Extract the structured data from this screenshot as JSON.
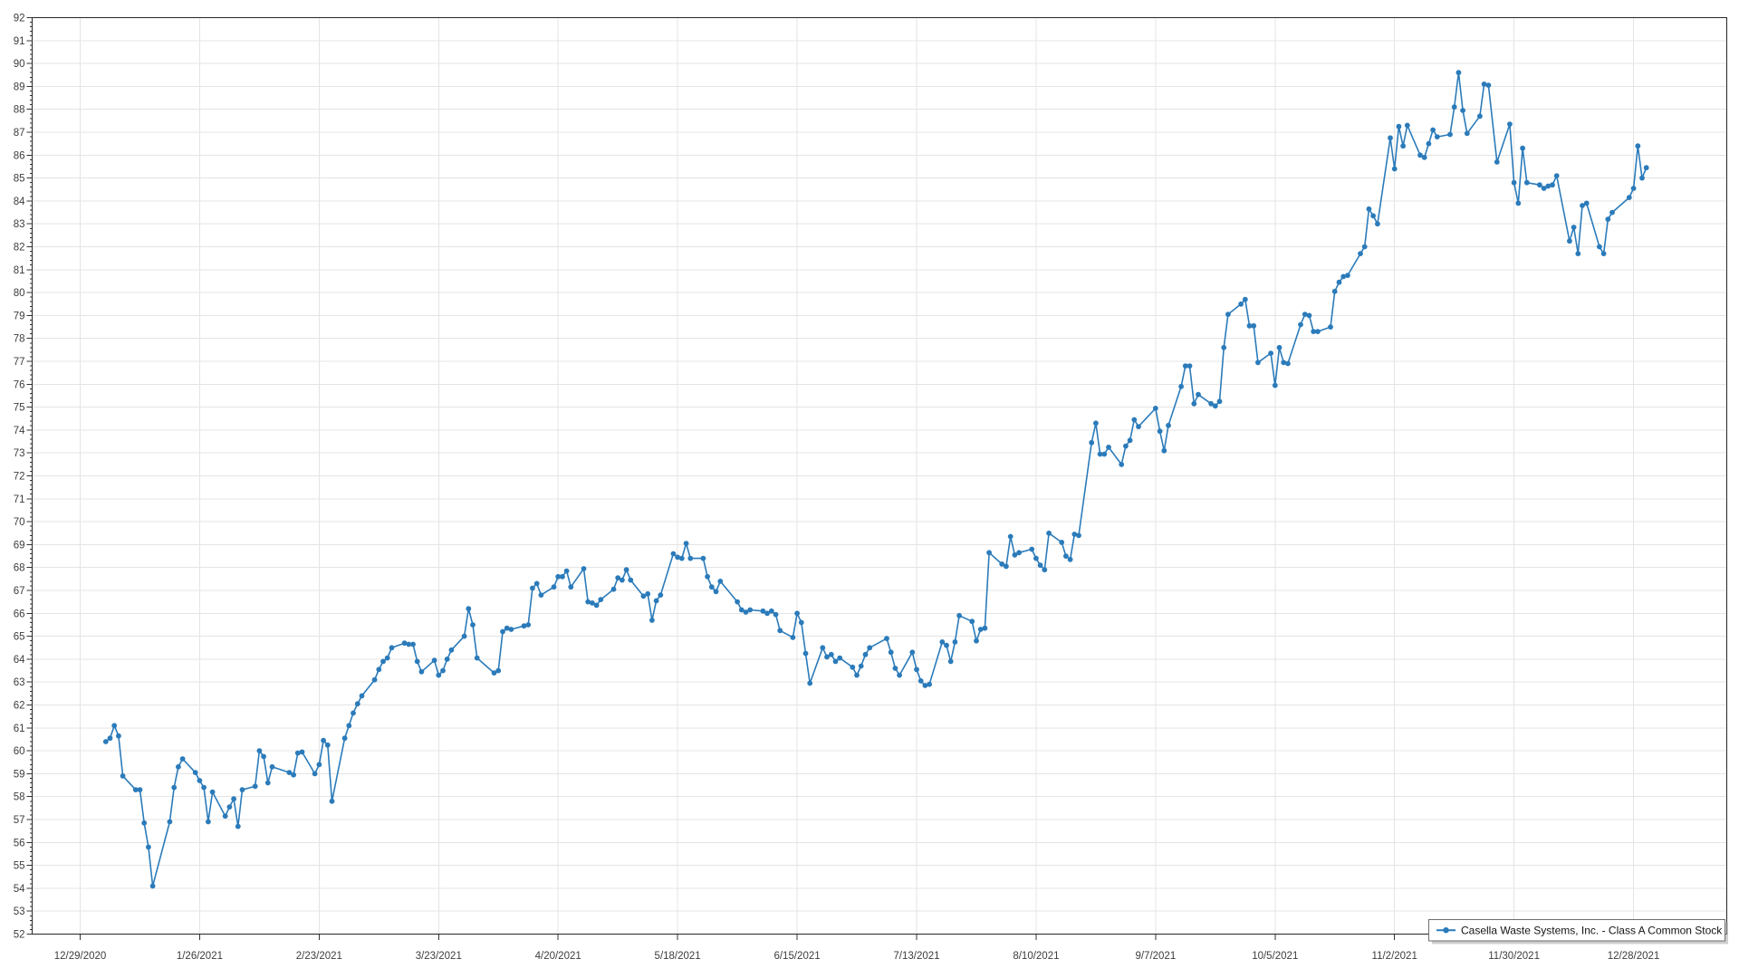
{
  "window": {
    "background": "#ffffff"
  },
  "chart_data": {
    "type": "line",
    "title": "",
    "xlabel": "",
    "ylabel": "",
    "ylim": [
      52,
      92
    ],
    "y_tick_step": 1,
    "grid": true,
    "legend_position": "bottom-right",
    "x_tick_labels": [
      "12/29/2020",
      "1/26/2021",
      "2/23/2021",
      "3/23/2021",
      "4/20/2021",
      "5/18/2021",
      "6/15/2021",
      "7/13/2021",
      "8/10/2021",
      "9/7/2021",
      "10/5/2021",
      "11/2/2021",
      "11/30/2021",
      "12/28/2021"
    ],
    "y_tick_labels": [
      "92",
      "91",
      "90",
      "89",
      "88",
      "87",
      "86",
      "85",
      "84",
      "83",
      "82",
      "81",
      "80",
      "79",
      "78",
      "77",
      "76",
      "75",
      "74",
      "73",
      "72",
      "71",
      "70",
      "69",
      "68",
      "67",
      "66",
      "65",
      "64",
      "63",
      "62",
      "61",
      "60",
      "59",
      "58",
      "57",
      "56",
      "55",
      "54",
      "53",
      "52"
    ],
    "series": [
      {
        "name": "Casella Waste Systems, Inc. - Class A Common Stock",
        "color": "#2b7bba",
        "marker": "circle",
        "start_date": "1/4/2021",
        "end_date": "12/31/2021",
        "frequency": "daily trading days",
        "values": [
          60.4,
          60.55,
          61.1,
          60.65,
          58.9,
          58.3,
          58.3,
          56.85,
          55.8,
          54.1,
          56.9,
          58.4,
          59.3,
          59.65,
          59.05,
          58.7,
          58.4,
          56.9,
          58.2,
          57.15,
          57.55,
          57.9,
          56.7,
          58.3,
          58.45,
          60.0,
          59.75,
          58.6,
          59.3,
          59.05,
          58.95,
          59.9,
          59.95,
          59.0,
          59.4,
          60.45,
          60.25,
          57.8,
          60.55,
          61.1,
          61.65,
          62.05,
          62.4,
          63.1,
          63.55,
          63.9,
          64.05,
          64.5,
          64.7,
          64.65,
          64.65,
          63.9,
          63.45,
          63.95,
          63.3,
          63.5,
          64.0,
          64.4,
          65.0,
          66.2,
          65.5,
          64.05,
          63.4,
          63.5,
          65.2,
          65.35,
          65.3,
          65.45,
          65.5,
          67.1,
          67.3,
          66.8,
          67.15,
          67.6,
          67.6,
          67.85,
          67.15,
          67.95,
          66.5,
          66.45,
          66.35,
          66.6,
          67.05,
          67.55,
          67.45,
          67.9,
          67.45,
          66.75,
          66.85,
          65.7,
          66.55,
          66.8,
          68.6,
          68.45,
          68.4,
          69.05,
          68.4,
          68.4,
          67.6,
          67.15,
          66.95,
          67.4,
          66.5,
          66.15,
          66.05,
          66.15,
          66.1,
          66.0,
          66.1,
          65.95,
          65.25,
          64.95,
          66.0,
          65.6,
          64.25,
          62.95,
          64.5,
          64.1,
          64.2,
          63.9,
          64.05,
          63.65,
          63.3,
          63.7,
          64.2,
          64.5,
          64.9,
          64.3,
          63.6,
          63.3,
          64.3,
          63.55,
          63.05,
          62.85,
          62.9,
          64.75,
          64.6,
          63.9,
          64.75,
          65.9,
          65.65,
          64.8,
          65.3,
          65.35,
          68.65,
          68.15,
          68.05,
          69.35,
          68.55,
          68.65,
          68.8,
          68.4,
          68.1,
          67.9,
          69.5,
          69.1,
          68.5,
          68.35,
          69.45,
          69.4,
          73.45,
          74.3,
          72.95,
          72.95,
          73.25,
          72.5,
          73.3,
          73.55,
          74.45,
          74.15,
          74.95,
          73.95,
          73.1,
          74.2,
          75.9,
          76.8,
          76.8,
          75.15,
          75.55,
          75.15,
          75.05,
          75.25,
          77.6,
          79.05,
          79.5,
          79.7,
          78.55,
          78.55,
          76.95,
          77.35,
          75.95,
          77.6,
          76.95,
          76.9,
          78.6,
          79.05,
          79.0,
          78.3,
          78.3,
          78.5,
          80.05,
          80.45,
          80.7,
          80.75,
          81.7,
          82.0,
          83.65,
          83.35,
          83.0,
          86.75,
          85.4,
          87.25,
          86.4,
          87.3,
          86.0,
          85.9,
          86.5,
          87.1,
          86.8,
          86.9,
          88.1,
          89.6,
          87.95,
          86.95,
          87.7,
          89.1,
          89.05,
          85.7,
          87.35,
          84.8,
          83.9,
          86.3,
          84.8,
          84.7,
          84.55,
          84.65,
          84.7,
          85.1,
          82.25,
          82.85,
          81.7,
          83.8,
          83.9,
          82.0,
          81.7,
          83.2,
          83.5,
          84.15,
          84.55,
          86.4,
          85.0,
          85.45
        ]
      }
    ]
  },
  "styles": {
    "gridline_color": "#e4e4e4",
    "axis_color": "#262626",
    "tick_color": "#333333",
    "label_color": "#3d3d3d",
    "legend_text_color": "#141414",
    "legend_border_color": "#6e6e6e",
    "legend_shadow_color": "#a8a8a8",
    "plot_background": "#ffffff"
  }
}
